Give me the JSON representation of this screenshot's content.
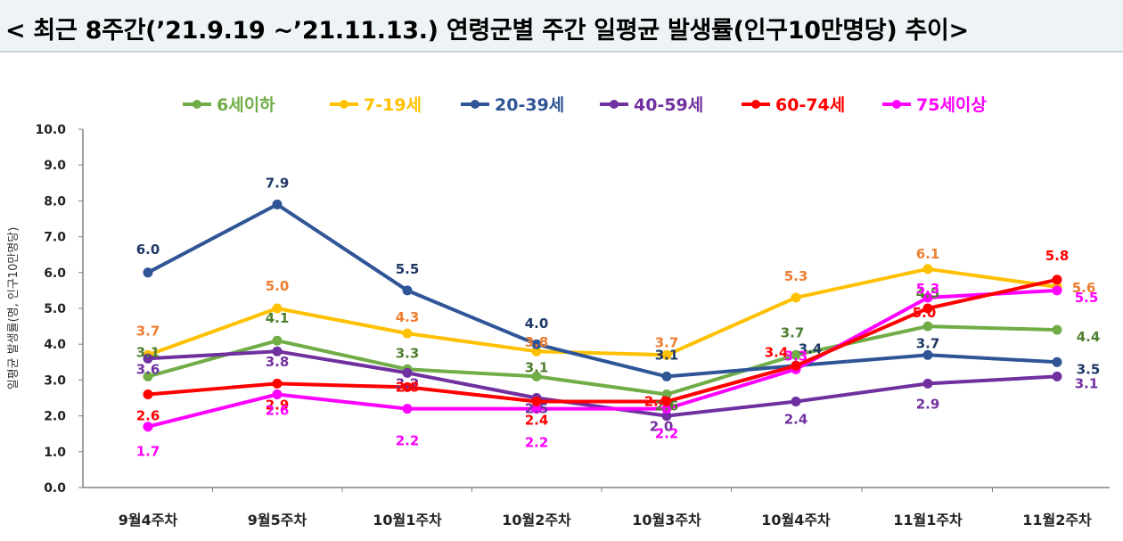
{
  "title": "< 최근 8주간(’21.9.19 ~’21.11.13.) 연령군별 주간 일평균 발생률(인구10만명당) 추이>",
  "chart_data": {
    "type": "line",
    "title": "",
    "xlabel": "",
    "ylabel": "일평균 발생률(명, 인구10만명당)",
    "ylim": [
      0,
      10
    ],
    "yticks": [
      "0.0",
      "1.0",
      "2.0",
      "3.0",
      "4.0",
      "5.0",
      "6.0",
      "7.0",
      "8.0",
      "9.0",
      "10.0"
    ],
    "grid": false,
    "legend_position": "top",
    "categories": [
      "9월4주차",
      "9월5주차",
      "10월1주차",
      "10월2주차",
      "10월3주차",
      "10월4주차",
      "11월1주차",
      "11월2주차"
    ],
    "series": [
      {
        "name": "6세이하",
        "color": "#70ad47",
        "label_color": "#4f7f2f",
        "values": [
          3.1,
          4.1,
          3.3,
          3.1,
          2.6,
          3.7,
          4.5,
          4.4
        ]
      },
      {
        "name": "7-19세",
        "color": "#ffc000",
        "label_color": "#ed7d31",
        "values": [
          3.7,
          5.0,
          4.3,
          3.8,
          3.7,
          5.3,
          6.1,
          5.6
        ]
      },
      {
        "name": "20-39세",
        "color": "#2f5597",
        "label_color": "#1f3864",
        "values": [
          6.0,
          7.9,
          5.5,
          4.0,
          3.1,
          3.4,
          3.7,
          3.5
        ]
      },
      {
        "name": "40-59세",
        "color": "#7030a0",
        "label_color": "#7030a0",
        "values": [
          3.6,
          3.8,
          3.2,
          2.5,
          2.0,
          2.4,
          2.9,
          3.1
        ]
      },
      {
        "name": "60-74세",
        "color": "#ff0000",
        "label_color": "#ff0000",
        "values": [
          2.6,
          2.9,
          2.8,
          2.4,
          2.4,
          3.4,
          5.0,
          5.8
        ]
      },
      {
        "name": "75세이상",
        "color": "#ff00ff",
        "label_color": "#ff00ff",
        "values": [
          1.7,
          2.6,
          2.2,
          2.2,
          2.2,
          3.3,
          5.3,
          5.5
        ]
      }
    ]
  }
}
